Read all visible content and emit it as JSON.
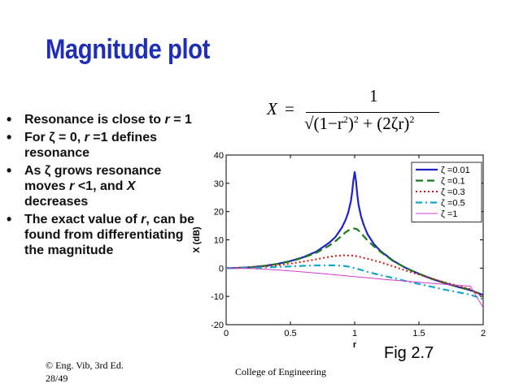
{
  "slide": {
    "title": "Magnitude plot",
    "fig_label": "Fig 2.7",
    "footer_line1": "© Eng. Vib, 3rd Ed.",
    "footer_line2": "28/49",
    "footer_center": "College of Engineering"
  },
  "formula": {
    "lhs": "X",
    "eq": "=",
    "numerator": "1",
    "den_a": "(1−r",
    "den_b": "2",
    "den_c": ")",
    "den_d": "2",
    "den_e": " + (2ζr)",
    "den_f": "2"
  },
  "chart_data": {
    "type": "line",
    "xlabel": "r",
    "ylabel": "X (dB)",
    "xlim": [
      0,
      2
    ],
    "ylim": [
      -20,
      40
    ],
    "xticks": [
      "0",
      "0.5",
      "1",
      "1.5",
      "2"
    ],
    "yticks": [
      "40",
      "30",
      "20",
      "10",
      "0",
      "-10",
      "-20"
    ],
    "grid": false,
    "legend_position": "top-right",
    "x": [
      0,
      0.1,
      0.2,
      0.3,
      0.4,
      0.5,
      0.6,
      0.7,
      0.8,
      0.85,
      0.9,
      0.93,
      0.95,
      0.97,
      0.98,
      0.99,
      1.0,
      1.01,
      1.02,
      1.03,
      1.05,
      1.07,
      1.1,
      1.15,
      1.2,
      1.3,
      1.4,
      1.5,
      1.6,
      1.7,
      1.8,
      1.9,
      2.0
    ],
    "series": [
      {
        "name": "ζ =0.01",
        "color": "#1e22c8",
        "dash": "solid",
        "values": [
          0,
          0.09,
          0.35,
          0.82,
          1.51,
          2.5,
          3.87,
          5.8,
          8.9,
          11.0,
          14.3,
          17.1,
          19.7,
          23.6,
          26.7,
          31.0,
          34.0,
          30.9,
          26.0,
          22.5,
          18.2,
          15.3,
          12.0,
          8.5,
          6.1,
          2.6,
          0.0,
          -2.0,
          -3.8,
          -5.3,
          -6.6,
          -7.8,
          -9.5
        ]
      },
      {
        "name": "ζ =0.1",
        "color": "#1a7a1a",
        "dash": "dashed",
        "values": [
          0,
          0.09,
          0.34,
          0.8,
          1.47,
          2.4,
          3.7,
          5.4,
          7.9,
          9.5,
          11.5,
          12.7,
          13.3,
          13.8,
          13.9,
          14.0,
          14.0,
          13.9,
          13.7,
          13.3,
          12.4,
          11.3,
          9.8,
          7.7,
          5.8,
          2.5,
          0.0,
          -2.0,
          -3.7,
          -5.2,
          -6.5,
          -7.7,
          -9.6
        ]
      },
      {
        "name": "ζ =0.3",
        "color": "#d01818",
        "dash": "dotted",
        "values": [
          0,
          0.07,
          0.27,
          0.6,
          1.05,
          1.6,
          2.3,
          3.1,
          4.0,
          4.3,
          4.5,
          4.55,
          4.5,
          4.45,
          4.42,
          4.38,
          4.3,
          4.25,
          4.18,
          4.1,
          3.9,
          3.65,
          3.3,
          2.7,
          2.1,
          0.6,
          -0.9,
          -2.3,
          -3.7,
          -5.0,
          -6.2,
          -7.4,
          -10.2
        ]
      },
      {
        "name": "ζ =0.5",
        "color": "#10a8c8",
        "dash": "dashdot",
        "values": [
          0,
          0.03,
          0.11,
          0.24,
          0.4,
          0.6,
          0.8,
          0.95,
          1.0,
          0.95,
          0.85,
          0.7,
          0.55,
          0.4,
          0.3,
          0.1,
          0.0,
          -0.2,
          -0.3,
          -0.4,
          -0.6,
          -0.9,
          -1.3,
          -1.9,
          -2.5,
          -3.5,
          -4.6,
          -5.6,
          -6.6,
          -7.6,
          -8.5,
          -9.4,
          -11.0
        ]
      },
      {
        "name": "ζ =1",
        "color": "#d23bd2",
        "dash": "solid-thin",
        "values": [
          0,
          -0.04,
          -0.17,
          -0.37,
          -0.64,
          -0.97,
          -1.34,
          -1.74,
          -2.15,
          -2.37,
          -2.58,
          -2.71,
          -2.79,
          -2.88,
          -2.92,
          -2.97,
          -3.0,
          -3.04,
          -3.09,
          -3.13,
          -3.22,
          -3.3,
          -3.42,
          -3.63,
          -3.83,
          -4.23,
          -4.61,
          -4.99,
          -5.35,
          -5.7,
          -6.04,
          -6.36,
          -14.0
        ]
      }
    ]
  },
  "bullets": {
    "b1_a": "Resonance is close to ",
    "b1_r": "r",
    "b1_b": " = 1",
    "b2_a": "For ζ = 0, ",
    "b2_r": "r",
    "b2_b": " =1 defines resonance",
    "b3_a": "As ζ grows resonance moves ",
    "b3_r": "r",
    "b3_b": " <1, and ",
    "b3_x": "X",
    "b3_c": " decreases",
    "b4_a": "The exact value of ",
    "b4_r": "r",
    "b4_b": ", can be found from differentiating the magnitude"
  }
}
